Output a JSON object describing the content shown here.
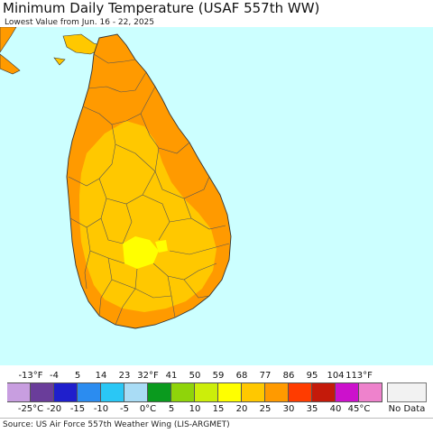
{
  "title": "Minimum Daily Temperature (USAF 557th WW)",
  "subtitle": "Lowest Value from Jun. 16 - 22, 2025",
  "legend": {
    "fahrenheit_labels": [
      "-13°F",
      "-4",
      "5",
      "14",
      "23",
      "32°F",
      "41",
      "50",
      "59",
      "68",
      "77",
      "86",
      "95",
      "104",
      "113°F"
    ],
    "celsius_labels": [
      "-25°C",
      "-20",
      "-15",
      "-10",
      "-5",
      "0°C",
      "5",
      "10",
      "15",
      "20",
      "25",
      "30",
      "35",
      "40",
      "45°C"
    ],
    "colors": [
      "#c89ee0",
      "#6a3d9a",
      "#1f1fcc",
      "#2b8cf0",
      "#2ac7f5",
      "#a9dcf5",
      "#0a9a1e",
      "#8fd40a",
      "#ccee0a",
      "#ffff00",
      "#ffc800",
      "#ff9a00",
      "#ff3c00",
      "#c41a0a",
      "#cc11cc",
      "#ee82cc"
    ],
    "no_data_label": "No Data",
    "no_data_color": "#f2f2f2"
  },
  "map": {
    "ocean_color": "#ccffff",
    "warm_zone_color": "#ff9a00",
    "mild_zone_color": "#ffc800",
    "cool_spot_color": "#ffff00"
  },
  "source": "Source: US Air Force 557th Weather Wing (LIS-ARGMET)"
}
